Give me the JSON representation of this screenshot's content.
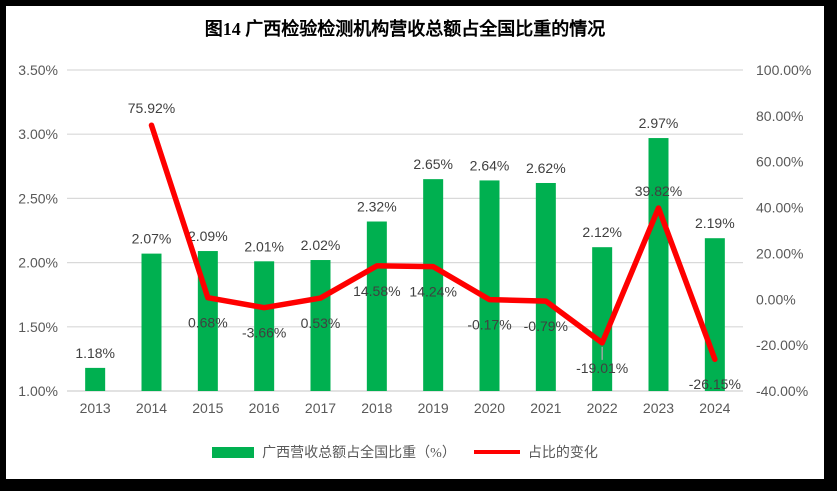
{
  "frame": {
    "border_color": "#000000",
    "background": "#FFFFFF"
  },
  "chart_data": {
    "type": "bar+line combo",
    "title": "图14 广西检验检测机构营收总额占全国比重的情况",
    "categories": [
      "2013",
      "2014",
      "2015",
      "2016",
      "2017",
      "2018",
      "2019",
      "2020",
      "2021",
      "2022",
      "2023",
      "2024"
    ],
    "series": [
      {
        "name": "广西营收总额占全国比重（%）",
        "type": "bar",
        "axis": "left",
        "color": "#00B050",
        "values": [
          1.18,
          2.07,
          2.09,
          2.01,
          2.02,
          2.32,
          2.65,
          2.64,
          2.62,
          2.12,
          2.97,
          2.19
        ],
        "labels": [
          "1.18%",
          "2.07%",
          "2.09%",
          "2.01%",
          "2.02%",
          "2.32%",
          "2.65%",
          "2.64%",
          "2.62%",
          "2.12%",
          "2.97%",
          "2.19%"
        ]
      },
      {
        "name": "占比的变化",
        "type": "line",
        "axis": "right",
        "color": "#FF0000",
        "values": [
          null,
          75.92,
          0.68,
          -3.66,
          0.53,
          14.58,
          14.24,
          -0.17,
          -0.79,
          -19.01,
          39.82,
          -26.15
        ],
        "labels": [
          null,
          "75.92%",
          "0.68%",
          "-3.66%",
          "0.53%",
          "14.58%",
          "14.24%",
          "-0.17%",
          "-0.79%",
          "-19.01%",
          "39.82%",
          "-26.15%"
        ],
        "label_side": [
          null,
          "above",
          "below",
          "below",
          "below",
          "below",
          "below",
          "below",
          "below",
          "below",
          "above",
          "below"
        ],
        "leader_line_indices": [
          9
        ]
      }
    ],
    "left_axis": {
      "min": 1.0,
      "max": 3.5,
      "ticks": [
        "3.50%",
        "3.00%",
        "2.50%",
        "2.00%",
        "1.50%",
        "1.00%"
      ]
    },
    "right_axis": {
      "min": -40,
      "max": 100,
      "ticks": [
        "100.00%",
        "80.00%",
        "60.00%",
        "40.00%",
        "20.00%",
        "0.00%",
        "-20.00%",
        "-40.00%"
      ]
    },
    "grid": true,
    "grid_color": "#D9D9D9",
    "axis_line_color": "#D9D9D9",
    "tick_label_color": "#595959",
    "data_label_color": "#404040",
    "leader_line_color": "#A6A6A6",
    "legend_position": "bottom"
  }
}
